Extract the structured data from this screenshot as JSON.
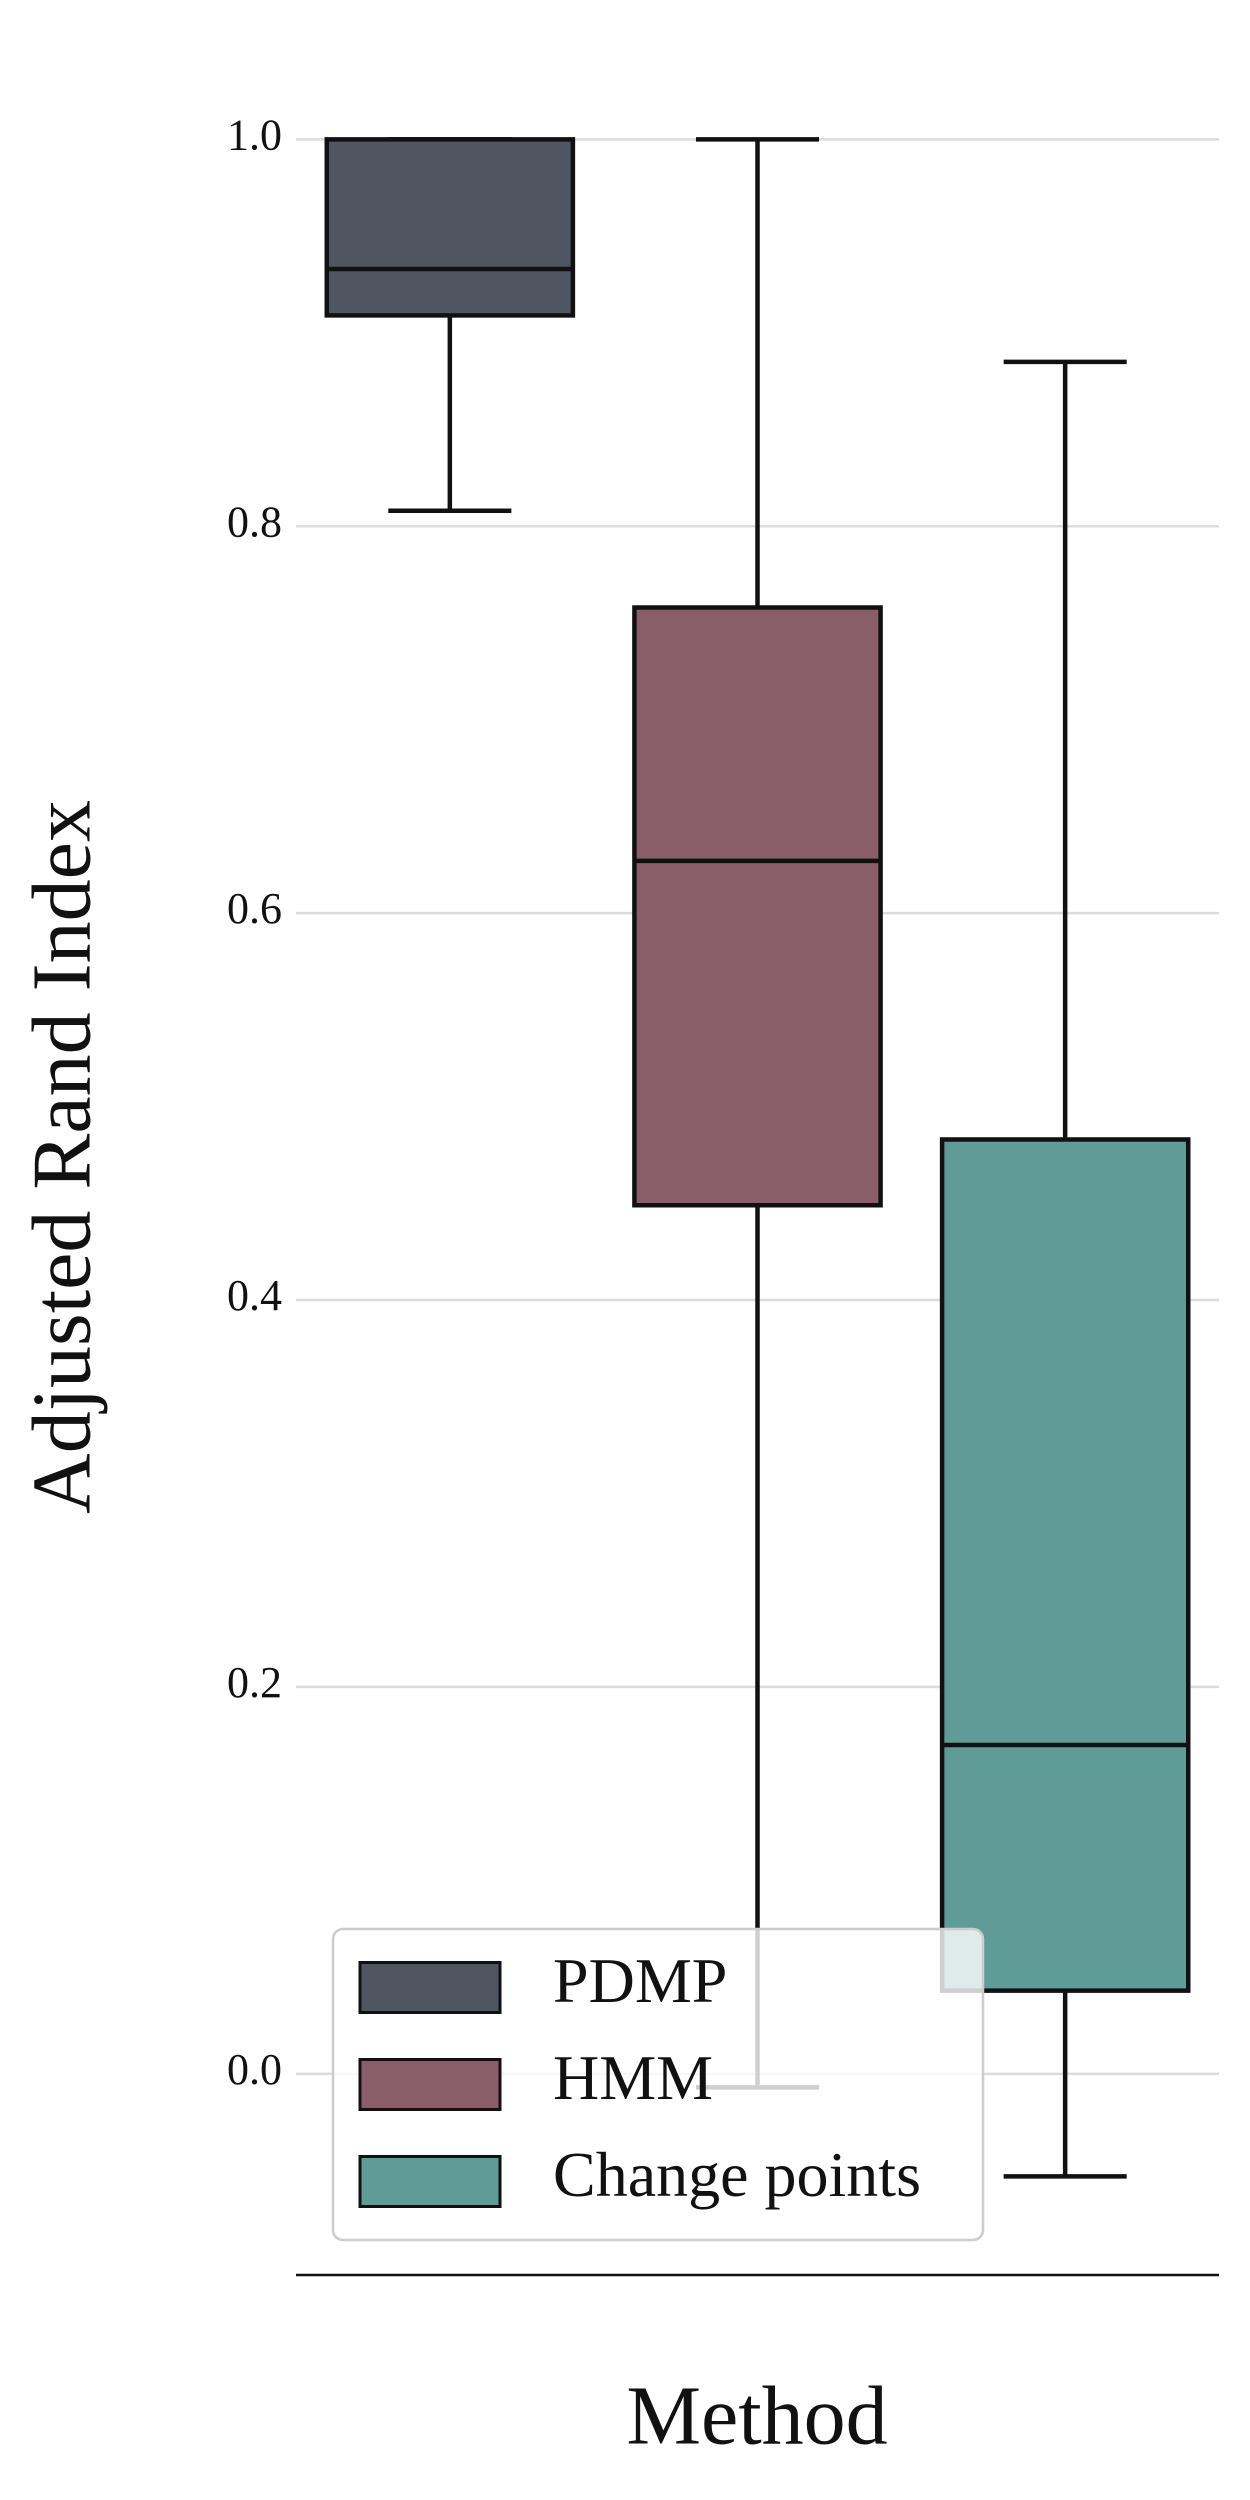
{
  "chart_data": {
    "type": "box",
    "ylabel": "Adjusted Rand Index",
    "xlabel": "Method",
    "ylim": [
      -0.104,
      1.04
    ],
    "yticks": [
      0.0,
      0.2,
      0.4,
      0.6,
      0.8,
      1.0
    ],
    "grid": true,
    "legend": "lower left",
    "series": [
      {
        "name": "PDMP",
        "color": "#4f5561",
        "min": 0.808,
        "q1": 0.909,
        "median": 0.933,
        "q3": 1.0,
        "max": 1.0
      },
      {
        "name": "HMM",
        "color": "#8a5d6a",
        "min": -0.007,
        "q1": 0.449,
        "median": 0.627,
        "q3": 0.758,
        "max": 1.0
      },
      {
        "name": "Change points",
        "color": "#5f9c98",
        "min": -0.053,
        "q1": 0.043,
        "median": 0.17,
        "q3": 0.483,
        "max": 0.885
      }
    ]
  }
}
